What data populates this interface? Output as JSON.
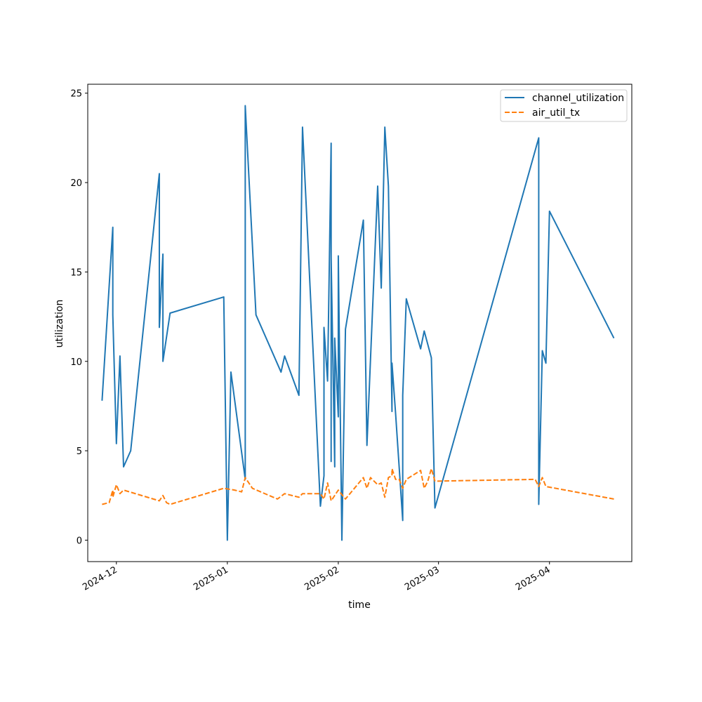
{
  "chart_data": {
    "type": "line",
    "title": "",
    "xlabel": "time",
    "ylabel": "utilization",
    "x_ticks": [
      "2024-12",
      "2025-01",
      "2025-02",
      "2025-03",
      "2025-04"
    ],
    "y_ticks": [
      "0",
      "5",
      "10",
      "15",
      "20",
      "25"
    ],
    "xlim": [
      "2024-11-23",
      "2025-04-24"
    ],
    "ylim": [
      -1.2,
      25.5
    ],
    "grid": false,
    "legend_position": "top-right",
    "series": [
      {
        "name": "channel_utilization",
        "color": "#1f77b4",
        "style": "solid",
        "points": [
          [
            "2024-11-27",
            7.8
          ],
          [
            "2024-11-30",
            17.5
          ],
          [
            "2024-11-30",
            17.5
          ],
          [
            "2024-11-30",
            12.6
          ],
          [
            "2024-12-01",
            5.4
          ],
          [
            "2024-12-02",
            10.3
          ],
          [
            "2024-12-03",
            4.1
          ],
          [
            "2024-12-05",
            5.0
          ],
          [
            "2024-12-13",
            20.5
          ],
          [
            "2024-12-13",
            11.9
          ],
          [
            "2024-12-14",
            16.0
          ],
          [
            "2024-12-14",
            10.0
          ],
          [
            "2024-12-16",
            12.7
          ],
          [
            "2024-12-31",
            13.6
          ],
          [
            "2025-01-01",
            0.0
          ],
          [
            "2025-01-02",
            9.4
          ],
          [
            "2025-01-06",
            3.4
          ],
          [
            "2025-01-06",
            24.3
          ],
          [
            "2025-01-09",
            12.6
          ],
          [
            "2025-01-16",
            9.4
          ],
          [
            "2025-01-17",
            10.3
          ],
          [
            "2025-01-21",
            8.1
          ],
          [
            "2025-01-22",
            23.1
          ],
          [
            "2025-01-27",
            1.9
          ],
          [
            "2025-01-28",
            3.6
          ],
          [
            "2025-01-28",
            11.9
          ],
          [
            "2025-01-29",
            8.9
          ],
          [
            "2025-01-30",
            22.2
          ],
          [
            "2025-01-30",
            4.4
          ],
          [
            "2025-01-30",
            15.8
          ],
          [
            "2025-01-31",
            4.1
          ],
          [
            "2025-01-31",
            11.3
          ],
          [
            "2025-02-01",
            6.9
          ],
          [
            "2025-02-01",
            15.9
          ],
          [
            "2025-02-02",
            0.0
          ],
          [
            "2025-02-03",
            11.8
          ],
          [
            "2025-02-08",
            17.9
          ],
          [
            "2025-02-09",
            5.3
          ],
          [
            "2025-02-12",
            19.8
          ],
          [
            "2025-02-13",
            14.1
          ],
          [
            "2025-02-14",
            23.1
          ],
          [
            "2025-02-15",
            19.8
          ],
          [
            "2025-02-16",
            7.2
          ],
          [
            "2025-02-16",
            9.9
          ],
          [
            "2025-02-17",
            7.1
          ],
          [
            "2025-02-19",
            1.1
          ],
          [
            "2025-02-19",
            8.1
          ],
          [
            "2025-02-20",
            13.5
          ],
          [
            "2025-02-24",
            10.7
          ],
          [
            "2025-02-25",
            11.7
          ],
          [
            "2025-02-27",
            10.2
          ],
          [
            "2025-02-28",
            1.8
          ],
          [
            "2025-03-29",
            22.5
          ],
          [
            "2025-03-29",
            2.0
          ],
          [
            "2025-03-30",
            10.6
          ],
          [
            "2025-03-31",
            9.9
          ],
          [
            "2025-04-01",
            18.4
          ],
          [
            "2025-04-19",
            11.3
          ]
        ]
      },
      {
        "name": "air_util_tx",
        "color": "#ff7f0e",
        "style": "dashed",
        "points": [
          [
            "2024-11-27",
            2.0
          ],
          [
            "2024-11-29",
            2.1
          ],
          [
            "2024-11-30",
            2.8
          ],
          [
            "2024-11-30",
            2.4
          ],
          [
            "2024-12-01",
            3.1
          ],
          [
            "2024-12-02",
            2.6
          ],
          [
            "2024-12-03",
            2.8
          ],
          [
            "2024-12-13",
            2.2
          ],
          [
            "2024-12-14",
            2.5
          ],
          [
            "2024-12-15",
            2.1
          ],
          [
            "2024-12-16",
            2.0
          ],
          [
            "2024-12-31",
            2.9
          ],
          [
            "2025-01-03",
            2.8
          ],
          [
            "2025-01-05",
            2.7
          ],
          [
            "2025-01-06",
            3.5
          ],
          [
            "2025-01-08",
            2.9
          ],
          [
            "2025-01-15",
            2.3
          ],
          [
            "2025-01-17",
            2.6
          ],
          [
            "2025-01-21",
            2.4
          ],
          [
            "2025-01-22",
            2.6
          ],
          [
            "2025-01-27",
            2.6
          ],
          [
            "2025-01-28",
            2.3
          ],
          [
            "2025-01-29",
            3.2
          ],
          [
            "2025-01-30",
            2.2
          ],
          [
            "2025-02-01",
            2.8
          ],
          [
            "2025-02-03",
            2.3
          ],
          [
            "2025-02-08",
            3.5
          ],
          [
            "2025-02-09",
            2.9
          ],
          [
            "2025-02-10",
            3.5
          ],
          [
            "2025-02-12",
            3.1
          ],
          [
            "2025-02-13",
            3.2
          ],
          [
            "2025-02-14",
            2.4
          ],
          [
            "2025-02-15",
            3.5
          ],
          [
            "2025-02-16",
            3.6
          ],
          [
            "2025-02-16",
            4.0
          ],
          [
            "2025-02-17",
            3.4
          ],
          [
            "2025-02-18",
            3.4
          ],
          [
            "2025-02-19",
            2.9
          ],
          [
            "2025-02-20",
            3.4
          ],
          [
            "2025-02-24",
            3.9
          ],
          [
            "2025-02-25",
            2.9
          ],
          [
            "2025-02-26",
            3.3
          ],
          [
            "2025-02-27",
            4.0
          ],
          [
            "2025-02-28",
            3.3
          ],
          [
            "2025-03-28",
            3.4
          ],
          [
            "2025-03-29",
            3.0
          ],
          [
            "2025-03-30",
            3.5
          ],
          [
            "2025-03-31",
            3.0
          ],
          [
            "2025-04-19",
            2.3
          ]
        ]
      }
    ]
  }
}
